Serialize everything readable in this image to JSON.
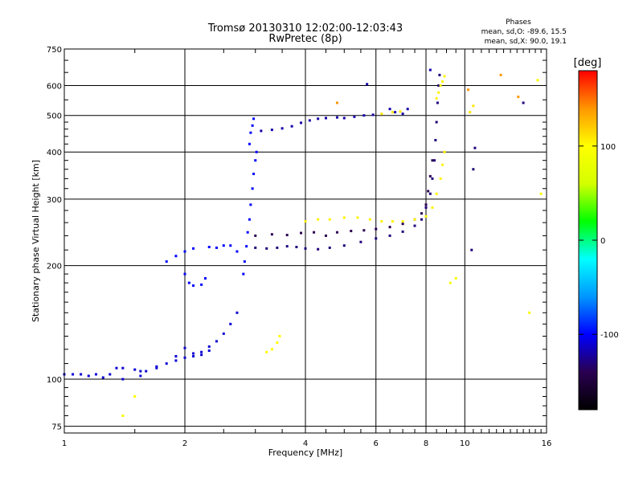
{
  "chart_data": {
    "type": "scatter",
    "title": "Tromsø 20130310 12:02:00-12:03:43",
    "subtitle": "RwPretec (8p)",
    "xlabel": "Frequency [MHz]",
    "ylabel": "Stationary phase Virtual Height [km]",
    "x_scale": "log",
    "y_scale": "log",
    "xlim": [
      1,
      16
    ],
    "ylim": [
      72,
      750
    ],
    "x_ticks": [
      1,
      2,
      4,
      6,
      8,
      10,
      16
    ],
    "x_tick_labels": [
      "1",
      "2",
      "4",
      "6",
      "8",
      "10",
      "16"
    ],
    "y_ticks": [
      75,
      100,
      200,
      300,
      400,
      500,
      600,
      750
    ],
    "y_tick_labels": [
      "75",
      "100",
      "200",
      "300",
      "400",
      "500",
      "600",
      "750"
    ],
    "grid": true,
    "stats": {
      "heading": "Phases",
      "line1": "mean, sd,O: -89.6, 15.5",
      "line2": "mean, sd,X:  90.0, 19.1"
    },
    "colorbar": {
      "label": "[deg]",
      "range": [
        -180,
        180
      ],
      "ticks": [
        100,
        0,
        -100
      ],
      "tick_labels": [
        "100",
        "0",
        "-100"
      ],
      "colormap": [
        "#000000",
        "#2a0050",
        "#0000ff",
        "#0096ff",
        "#00ffff",
        "#00ff00",
        "#d4ff00",
        "#ffff00",
        "#ff9600",
        "#ff0000"
      ]
    },
    "series": [
      {
        "phase": -110,
        "points": [
          [
            1.0,
            103
          ],
          [
            1.05,
            103
          ],
          [
            1.1,
            103
          ],
          [
            1.15,
            102
          ],
          [
            1.2,
            103
          ],
          [
            1.25,
            101
          ],
          [
            1.3,
            103
          ],
          [
            1.35,
            107
          ],
          [
            1.4,
            107
          ],
          [
            1.5,
            106
          ],
          [
            1.55,
            105
          ],
          [
            1.6,
            105
          ],
          [
            1.7,
            107
          ],
          [
            1.8,
            110
          ],
          [
            1.9,
            112
          ],
          [
            2.0,
            114
          ],
          [
            2.1,
            117
          ],
          [
            2.2,
            118
          ],
          [
            2.3,
            122
          ],
          [
            2.4,
            126
          ],
          [
            2.5,
            132
          ],
          [
            2.6,
            140
          ],
          [
            2.7,
            150
          ]
        ]
      },
      {
        "phase": -110,
        "points": [
          [
            1.4,
            100
          ],
          [
            1.55,
            102
          ],
          [
            1.7,
            108
          ],
          [
            1.9,
            115
          ],
          [
            2.0,
            121
          ],
          [
            2.1,
            115
          ],
          [
            2.2,
            116
          ],
          [
            2.3,
            119
          ]
        ]
      },
      {
        "phase": -100,
        "points": [
          [
            1.8,
            205
          ],
          [
            1.9,
            212
          ],
          [
            2.0,
            218
          ],
          [
            2.1,
            222
          ],
          [
            2.3,
            224
          ],
          [
            2.4,
            223
          ],
          [
            2.5,
            226
          ],
          [
            2.6,
            226
          ],
          [
            2.7,
            218
          ]
        ]
      },
      {
        "phase": -100,
        "points": [
          [
            2.0,
            190
          ],
          [
            2.05,
            180
          ],
          [
            2.1,
            177
          ],
          [
            2.2,
            178
          ],
          [
            2.25,
            185
          ]
        ]
      },
      {
        "phase": -100,
        "points": [
          [
            2.8,
            190
          ],
          [
            2.82,
            205
          ],
          [
            2.85,
            225
          ],
          [
            2.87,
            245
          ],
          [
            2.9,
            265
          ],
          [
            2.92,
            290
          ],
          [
            2.95,
            320
          ],
          [
            2.97,
            350
          ],
          [
            3.0,
            380
          ],
          [
            3.02,
            400
          ]
        ]
      },
      {
        "phase": -100,
        "points": [
          [
            2.9,
            420
          ],
          [
            2.92,
            450
          ],
          [
            2.95,
            470
          ],
          [
            2.97,
            490
          ]
        ]
      },
      {
        "phase": -120,
        "points": [
          [
            3.1,
            455
          ],
          [
            3.3,
            458
          ],
          [
            3.5,
            462
          ],
          [
            3.7,
            468
          ],
          [
            3.9,
            478
          ],
          [
            4.1,
            485
          ],
          [
            4.3,
            490
          ],
          [
            4.5,
            492
          ],
          [
            4.8,
            494
          ],
          [
            5.0,
            492
          ],
          [
            5.3,
            496
          ],
          [
            5.6,
            500
          ],
          [
            5.9,
            502
          ]
        ]
      },
      {
        "phase": -130,
        "points": [
          [
            3.0,
            223
          ],
          [
            3.2,
            222
          ],
          [
            3.4,
            223
          ],
          [
            3.6,
            225
          ],
          [
            3.8,
            224
          ],
          [
            4.0,
            222
          ],
          [
            4.3,
            221
          ],
          [
            4.6,
            223
          ],
          [
            5.0,
            226
          ],
          [
            5.5,
            231
          ],
          [
            6.0,
            236
          ],
          [
            6.5,
            240
          ],
          [
            7.0,
            246
          ],
          [
            7.5,
            255
          ],
          [
            7.8,
            265
          ],
          [
            8.0,
            285
          ],
          [
            8.2,
            310
          ],
          [
            8.3,
            340
          ],
          [
            8.4,
            380
          ],
          [
            8.45,
            430
          ],
          [
            8.5,
            480
          ],
          [
            8.55,
            540
          ],
          [
            8.6,
            600
          ],
          [
            8.65,
            640
          ]
        ]
      },
      {
        "phase": -140,
        "points": [
          [
            3.0,
            240
          ],
          [
            3.3,
            242
          ],
          [
            3.6,
            241
          ],
          [
            3.9,
            244
          ],
          [
            4.2,
            245
          ],
          [
            4.5,
            240
          ],
          [
            4.8,
            245
          ],
          [
            5.2,
            247
          ],
          [
            5.6,
            248
          ],
          [
            6.0,
            250
          ],
          [
            6.5,
            253
          ],
          [
            7.0,
            258
          ],
          [
            7.5,
            265
          ],
          [
            7.8,
            275
          ],
          [
            8.0,
            290
          ],
          [
            8.1,
            315
          ],
          [
            8.2,
            345
          ],
          [
            8.3,
            380
          ]
        ]
      },
      {
        "phase": 105,
        "points": [
          [
            4.0,
            262
          ],
          [
            4.3,
            265
          ],
          [
            4.6,
            265
          ],
          [
            5.0,
            268
          ],
          [
            5.4,
            268
          ],
          [
            5.8,
            265
          ],
          [
            6.2,
            262
          ],
          [
            6.6,
            262
          ],
          [
            7.0,
            262
          ],
          [
            7.5,
            265
          ],
          [
            8.0,
            270
          ],
          [
            8.3,
            285
          ],
          [
            8.5,
            310
          ],
          [
            8.7,
            340
          ],
          [
            8.8,
            370
          ],
          [
            8.9,
            400
          ]
        ]
      },
      {
        "phase": 105,
        "points": [
          [
            8.5,
            555
          ],
          [
            8.6,
            575
          ],
          [
            8.7,
            600
          ],
          [
            8.8,
            615
          ],
          [
            8.9,
            635
          ]
        ]
      },
      {
        "phase": 100,
        "points": [
          [
            3.2,
            118
          ],
          [
            3.3,
            120
          ],
          [
            3.4,
            125
          ],
          [
            3.45,
            130
          ]
        ]
      },
      {
        "phase": -120,
        "points": [
          [
            5.7,
            605
          ],
          [
            7.2,
            520
          ],
          [
            6.5,
            520
          ],
          [
            6.7,
            510
          ],
          [
            7.0,
            505
          ],
          [
            8.2,
            660
          ]
        ]
      },
      {
        "phase": 110,
        "points": [
          [
            6.2,
            505
          ],
          [
            6.6,
            510
          ],
          [
            6.9,
            512
          ],
          [
            10.3,
            510
          ],
          [
            10.5,
            530
          ]
        ]
      },
      {
        "phase": 140,
        "points": [
          [
            12.3,
            640
          ],
          [
            13.6,
            560
          ],
          [
            10.2,
            585
          ],
          [
            4.8,
            540
          ]
        ]
      },
      {
        "phase": -130,
        "points": [
          [
            10.5,
            360
          ],
          [
            10.6,
            410
          ],
          [
            10.4,
            220
          ],
          [
            14.0,
            540
          ]
        ]
      },
      {
        "phase": 95,
        "points": [
          [
            1.4,
            80
          ],
          [
            1.5,
            90
          ],
          [
            14.5,
            150
          ],
          [
            15.2,
            620
          ],
          [
            15.5,
            310
          ],
          [
            9.2,
            180
          ],
          [
            9.5,
            185
          ]
        ]
      }
    ]
  }
}
